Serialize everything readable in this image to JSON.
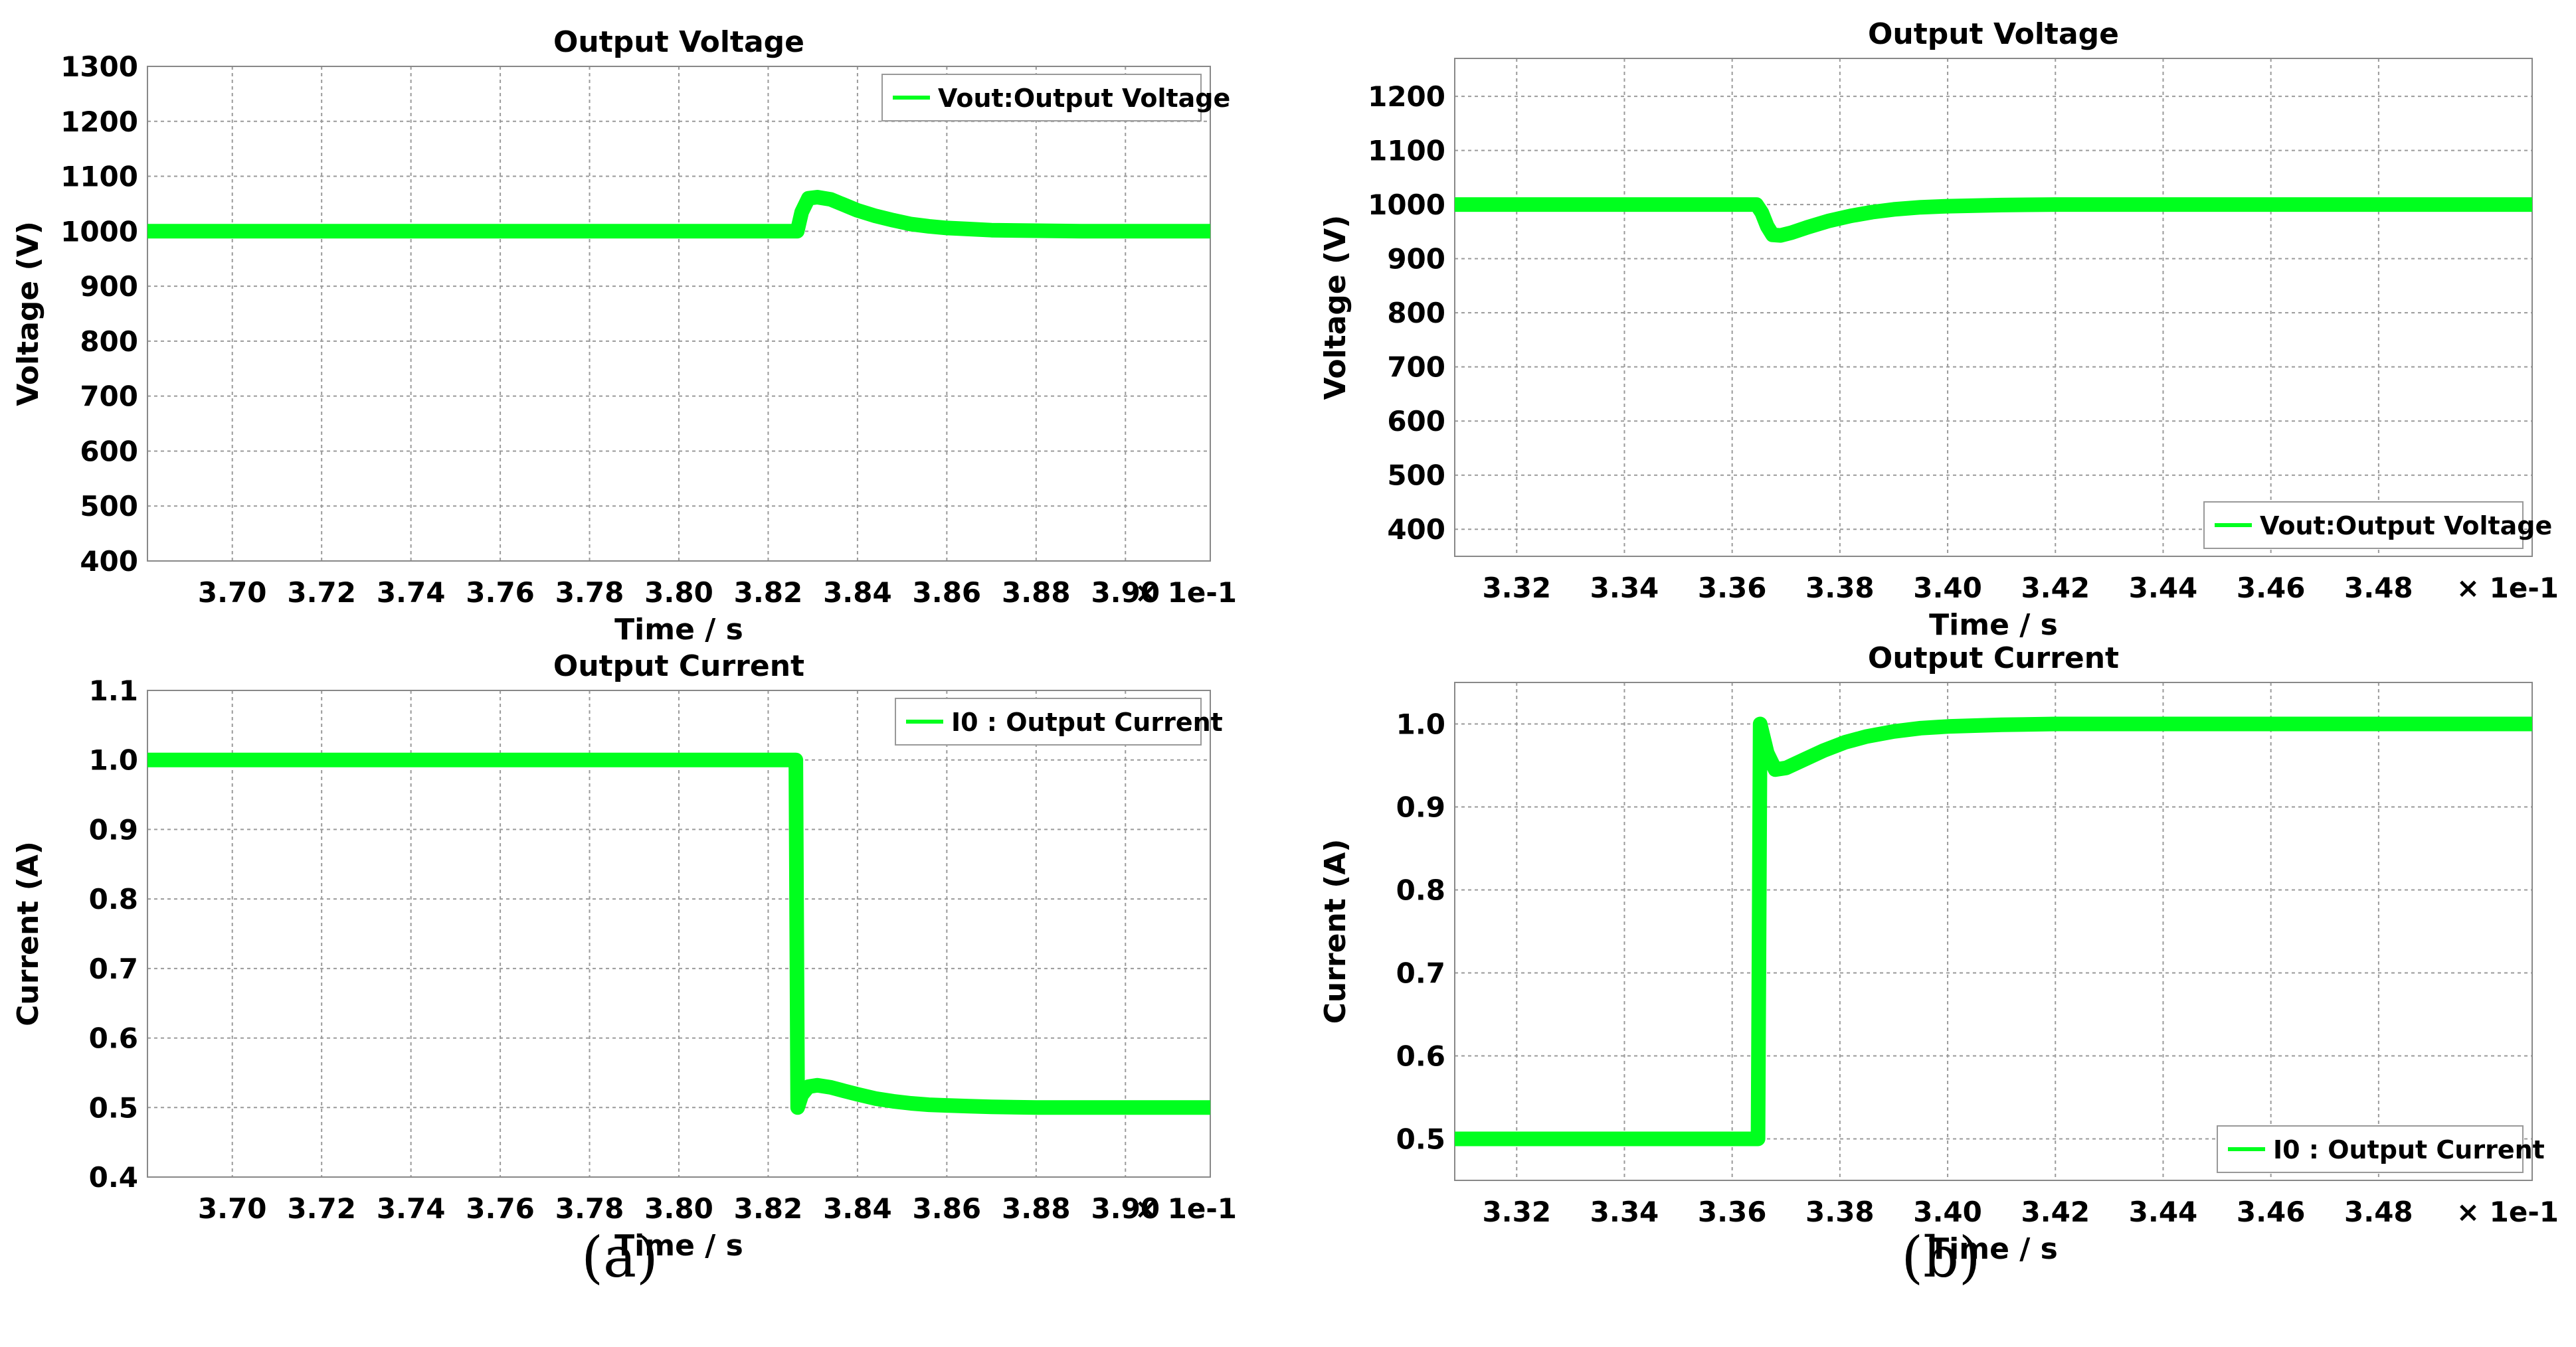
{
  "panel_labels": [
    "(a)",
    "(b)"
  ],
  "styles": {
    "trace_color": "#00ff1e",
    "grid_color": "#9a9a9a",
    "axes_color": "#888888"
  },
  "chart_data": [
    {
      "type": "line",
      "title": "Output Voltage",
      "xlabel": "Time / s",
      "ylabel": "Voltage (V)",
      "x_multiplier": "× 1e-1",
      "xlim": [
        3.681,
        3.919
      ],
      "ylim": [
        400,
        1300
      ],
      "xticks": [
        "3.70",
        "3.72",
        "3.74",
        "3.76",
        "3.78",
        "3.80",
        "3.82",
        "3.84",
        "3.86",
        "3.88",
        "3.90"
      ],
      "yticks": [
        "400",
        "500",
        "600",
        "700",
        "800",
        "900",
        "1000",
        "1100",
        "1200",
        "1300"
      ],
      "legend_position": "top-right",
      "grid": true,
      "series": [
        {
          "name": "Vout:Output Voltage",
          "x": [
            3.681,
            3.8265,
            3.8275,
            3.829,
            3.831,
            3.834,
            3.837,
            3.84,
            3.844,
            3.848,
            3.852,
            3.856,
            3.86,
            3.865,
            3.87,
            3.88,
            3.89,
            3.919
          ],
          "y": [
            1000,
            1000,
            1035,
            1060,
            1062,
            1058,
            1048,
            1038,
            1028,
            1020,
            1013,
            1009,
            1006,
            1004,
            1002,
            1001,
            1000,
            1000
          ]
        }
      ]
    },
    {
      "type": "line",
      "title": "Output Voltage",
      "xlabel": "Time / s",
      "ylabel": "Voltage (V)",
      "x_multiplier": "× 1e-1",
      "xlim": [
        3.3085,
        3.5085
      ],
      "ylim": [
        350,
        1270
      ],
      "xticks": [
        "3.32",
        "3.34",
        "3.36",
        "3.38",
        "3.40",
        "3.42",
        "3.44",
        "3.46",
        "3.48"
      ],
      "yticks": [
        "400",
        "500",
        "600",
        "700",
        "800",
        "900",
        "1000",
        "1100",
        "1200"
      ],
      "legend_position": "bottom-right",
      "grid": true,
      "series": [
        {
          "name": "Vout:Output Voltage",
          "x": [
            3.3085,
            3.3645,
            3.3655,
            3.3665,
            3.3675,
            3.369,
            3.371,
            3.374,
            3.378,
            3.382,
            3.386,
            3.39,
            3.395,
            3.4,
            3.405,
            3.41,
            3.42,
            3.43,
            3.5085
          ],
          "y": [
            1000,
            1000,
            985,
            960,
            944,
            943,
            948,
            958,
            970,
            979,
            986,
            991,
            995,
            997,
            998,
            999,
            1000,
            1000,
            1000
          ]
        }
      ]
    },
    {
      "type": "line",
      "title": "Output Current",
      "xlabel": "Time / s",
      "ylabel": "Current (A)",
      "x_multiplier": "× 1e-1",
      "xlim": [
        3.681,
        3.919
      ],
      "ylim": [
        0.4,
        1.1
      ],
      "xticks": [
        "3.70",
        "3.72",
        "3.74",
        "3.76",
        "3.78",
        "3.80",
        "3.82",
        "3.84",
        "3.86",
        "3.88",
        "3.90"
      ],
      "yticks": [
        "0.4",
        "0.5",
        "0.6",
        "0.7",
        "0.8",
        "0.9",
        "1.0",
        "1.1"
      ],
      "legend_position": "top-right",
      "grid": true,
      "series": [
        {
          "name": "I0 : Output Current",
          "x": [
            3.681,
            3.8262,
            3.8266,
            3.8275,
            3.829,
            3.831,
            3.834,
            3.837,
            3.84,
            3.844,
            3.848,
            3.852,
            3.856,
            3.86,
            3.865,
            3.87,
            3.88,
            3.919
          ],
          "y": [
            1.0,
            1.0,
            0.5,
            0.518,
            0.53,
            0.532,
            0.529,
            0.524,
            0.519,
            0.513,
            0.509,
            0.506,
            0.504,
            0.503,
            0.502,
            0.501,
            0.5,
            0.5
          ]
        }
      ]
    },
    {
      "type": "line",
      "title": "Output Current",
      "xlabel": "Time / s",
      "ylabel": "Current (A)",
      "x_multiplier": "× 1e-1",
      "xlim": [
        3.3085,
        3.5085
      ],
      "ylim": [
        0.45,
        1.05
      ],
      "xticks": [
        "3.32",
        "3.34",
        "3.36",
        "3.38",
        "3.40",
        "3.42",
        "3.44",
        "3.46",
        "3.48"
      ],
      "yticks": [
        "0.5",
        "0.6",
        "0.7",
        "0.8",
        "0.9",
        "1.0"
      ],
      "legend_position": "bottom-right",
      "grid": true,
      "series": [
        {
          "name": "I0 : Output Current",
          "x": [
            3.3085,
            3.3648,
            3.3652,
            3.3665,
            3.368,
            3.37,
            3.373,
            3.377,
            3.381,
            3.385,
            3.39,
            3.395,
            3.4,
            3.405,
            3.41,
            3.42,
            3.43,
            3.5085
          ],
          "y": [
            0.5,
            0.5,
            1.0,
            0.965,
            0.945,
            0.947,
            0.956,
            0.968,
            0.978,
            0.985,
            0.991,
            0.995,
            0.997,
            0.998,
            0.999,
            1.0,
            1.0,
            1.0
          ]
        }
      ]
    }
  ]
}
